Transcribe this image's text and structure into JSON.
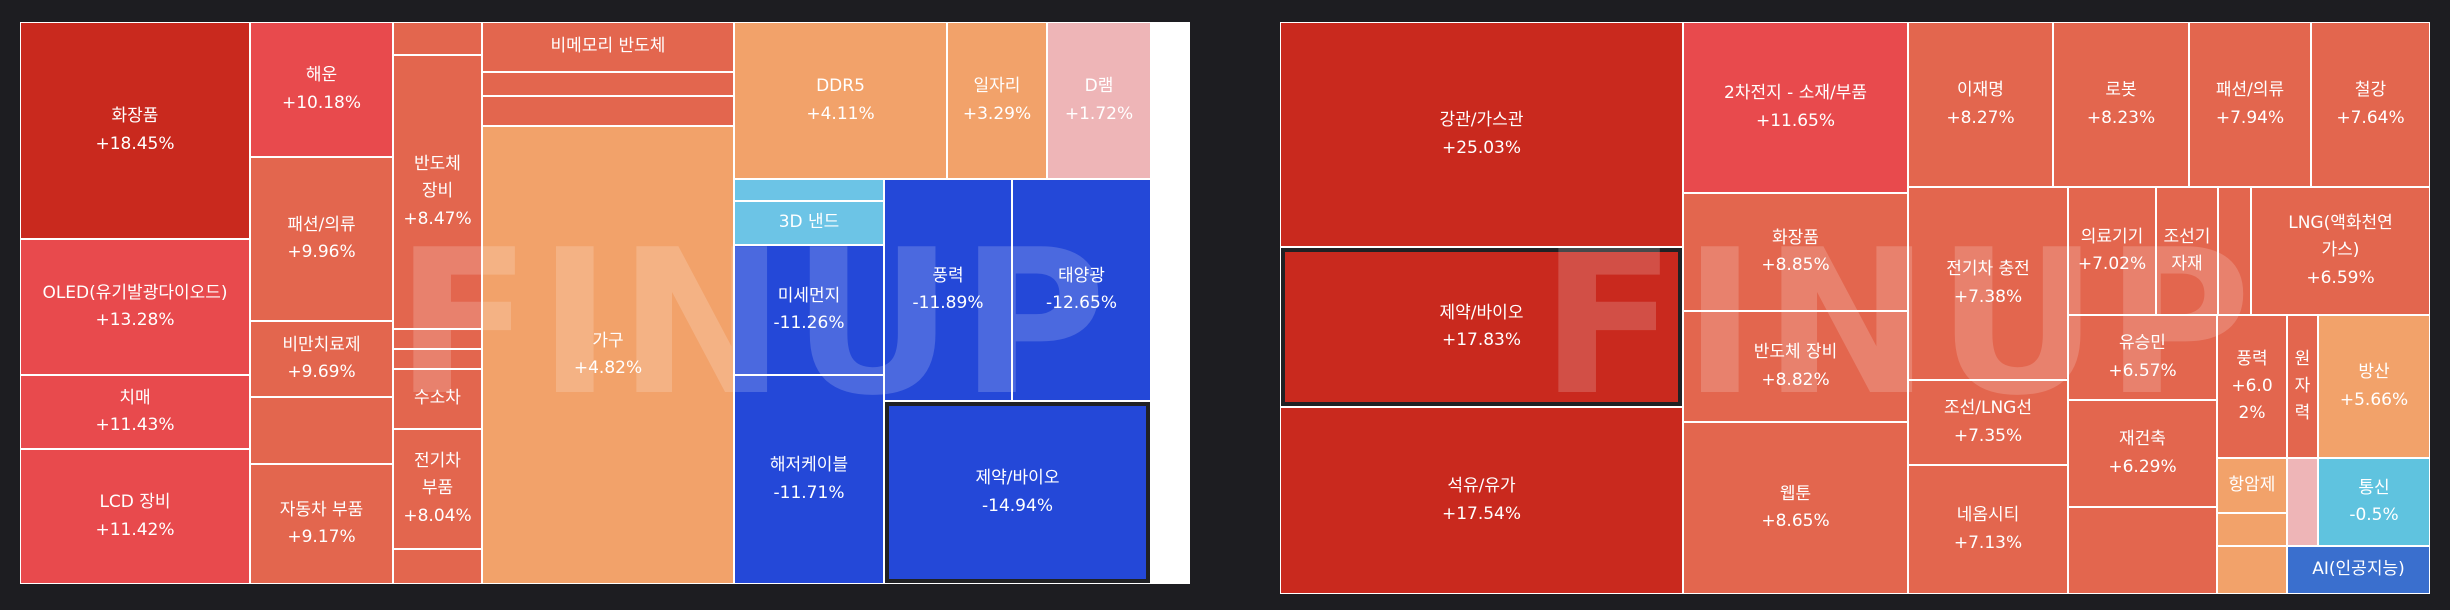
{
  "watermark": "FINUP",
  "colors": {
    "deep_red": "#c9291e",
    "red": "#e84a4d",
    "coral": "#e3664e",
    "orange": "#f2a26a",
    "pink": "#eeb5b7",
    "blue": "#2448d8",
    "light_blue": "#6cc4e6",
    "teal_blue": "#5fc3df",
    "royal_blue": "#3a6fce"
  },
  "chart_data": [
    {
      "type": "treemap",
      "items": [
        {
          "name": "화장품",
          "change": 18.45,
          "label": "+18.45%"
        },
        {
          "name": "OLED(유기발광다이오드)",
          "change": 13.28,
          "label": "+13.28%"
        },
        {
          "name": "치매",
          "change": 11.43,
          "label": "+11.43%"
        },
        {
          "name": "LCD 장비",
          "change": 11.42,
          "label": "+11.42%"
        },
        {
          "name": "해운",
          "change": 10.18,
          "label": "+10.18%"
        },
        {
          "name": "패션/의류",
          "change": 9.96,
          "label": "+9.96%"
        },
        {
          "name": "비만치료제",
          "change": 9.69,
          "label": "+9.69%"
        },
        {
          "name": "자동차 부품",
          "change": 9.17,
          "label": "+9.17%"
        },
        {
          "name": "반도체\n장비",
          "change": 8.47,
          "label": "+8.47%"
        },
        {
          "name": "수소차",
          "change": null,
          "label": ""
        },
        {
          "name": "전기차\n부품",
          "change": 8.04,
          "label": "+8.04%"
        },
        {
          "name": "비메모리 반도체",
          "change": null,
          "label": ""
        },
        {
          "name": "가구",
          "change": 4.82,
          "label": "+4.82%"
        },
        {
          "name": "DDR5",
          "change": 4.11,
          "label": "+4.11%"
        },
        {
          "name": "일자리",
          "change": 3.29,
          "label": "+3.29%"
        },
        {
          "name": "D램",
          "change": 1.72,
          "label": "+1.72%"
        },
        {
          "name": "3D 낸드",
          "change": null,
          "label": ""
        },
        {
          "name": "미세먼지",
          "change": -11.26,
          "label": "-11.26%"
        },
        {
          "name": "풍력",
          "change": -11.89,
          "label": "-11.89%"
        },
        {
          "name": "태양광",
          "change": -12.65,
          "label": "-12.65%"
        },
        {
          "name": "해저케이블",
          "change": -11.71,
          "label": "-11.71%"
        },
        {
          "name": "제약/바이오",
          "change": -14.94,
          "label": "-14.94%"
        }
      ]
    },
    {
      "type": "treemap",
      "items": [
        {
          "name": "강관/가스관",
          "change": 25.03,
          "label": "+25.03%"
        },
        {
          "name": "제약/바이오",
          "change": 17.83,
          "label": "+17.83%"
        },
        {
          "name": "석유/유가",
          "change": 17.54,
          "label": "+17.54%"
        },
        {
          "name": "2차전지 - 소재/부품",
          "change": 11.65,
          "label": "+11.65%"
        },
        {
          "name": "화장품",
          "change": 8.85,
          "label": "+8.85%"
        },
        {
          "name": "반도체 장비",
          "change": 8.82,
          "label": "+8.82%"
        },
        {
          "name": "웹툰",
          "change": 8.65,
          "label": "+8.65%"
        },
        {
          "name": "이재명",
          "change": 8.27,
          "label": "+8.27%"
        },
        {
          "name": "로봇",
          "change": 8.23,
          "label": "+8.23%"
        },
        {
          "name": "패션/의류",
          "change": 7.94,
          "label": "+7.94%"
        },
        {
          "name": "철강",
          "change": 7.64,
          "label": "+7.64%"
        },
        {
          "name": "전기차 충전",
          "change": 7.38,
          "label": "+7.38%"
        },
        {
          "name": "조선/LNG선",
          "change": 7.35,
          "label": "+7.35%"
        },
        {
          "name": "네옴시티",
          "change": 7.13,
          "label": "+7.13%"
        },
        {
          "name": "의료기기",
          "change": 7.02,
          "label": "+7.02%"
        },
        {
          "name": "조선기\n자재",
          "change": null,
          "label": ""
        },
        {
          "name": "LNG(액화천연\n가스)",
          "change": 6.59,
          "label": "+6.59%"
        },
        {
          "name": "유승민",
          "change": 6.57,
          "label": "+6.57%"
        },
        {
          "name": "재건축",
          "change": 6.29,
          "label": "+6.29%"
        },
        {
          "name": "풍력",
          "change": 6.02,
          "label": "+6.0\n2%"
        },
        {
          "name": "원\n자\n력",
          "change": null,
          "label": ""
        },
        {
          "name": "방산",
          "change": 5.66,
          "label": "+5.66%"
        },
        {
          "name": "항암제",
          "change": null,
          "label": ""
        },
        {
          "name": "통신",
          "change": -0.5,
          "label": "-0.5%"
        },
        {
          "name": "AI(인공지능)",
          "change": null,
          "label": ""
        }
      ]
    }
  ]
}
